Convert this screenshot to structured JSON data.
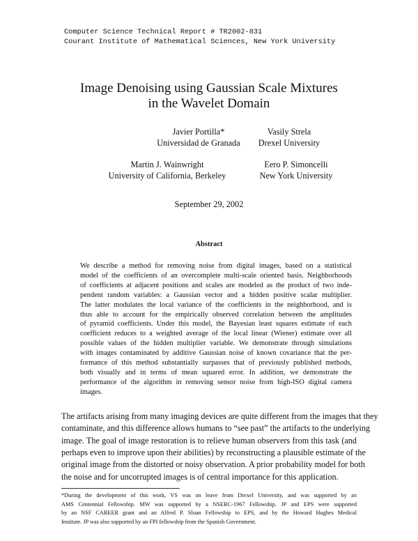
{
  "header": {
    "line1": "Computer Science Technical Report # TR2002-831",
    "line2": "Courant Institute of Mathematical Sciences, New York University"
  },
  "title": {
    "line1": "Image Denoising using Gaussian Scale Mixtures",
    "line2": "in the Wavelet Domain"
  },
  "authors": [
    {
      "name": "Javier Portilla*",
      "affiliation": "Universidad de Granada"
    },
    {
      "name": "Vasily Strela",
      "affiliation": "Drexel University"
    },
    {
      "name": "Martin J. Wainwright",
      "affiliation": "University of California, Berkeley"
    },
    {
      "name": "Eero P. Simoncelli",
      "affiliation": "New York University"
    }
  ],
  "date": "September 29, 2002",
  "abstract": {
    "heading": "Abstract",
    "lines": [
      "We describe a method for removing noise from digital images, based on a statistical",
      "model of the coefficients of an overcomplete multi-scale oriented basis. Neighborhoods",
      "of coefficients at adjacent positions and scales are modeled as the product of two inde-",
      "pendent random variables: a Gaussian vector and a hidden positive scalar multiplier.",
      "The latter modulates the local variance of the coefficients in the neighborhood, and is",
      "thus able to account for the empirically observed correlation between the amplitudes",
      "of pyramid coefficients. Under this model, the Bayesian least squares estimate of each",
      "coefficient reduces to a weighted average of the local linear (Wiener) estimate over all",
      "possible values of the hidden multiplier variable. We demonstrate through simulations",
      "with images contaminated by additive Gaussian noise of known covariance that the per-",
      "formance of this method substantially surpasses that of previously published methods,",
      "both visually and in terms of mean squared error.   In addition, we demonstrate the",
      "performance of the algorithm in removing sensor noise from high-ISO digital camera",
      "images."
    ]
  },
  "body": {
    "lines": [
      "The artifacts arising from many imaging devices are quite different from the images that they",
      "contaminate, and this difference allows humans to “see past” the artifacts to the underlying",
      "image. The goal of image restoration is to relieve human observers from this task (and",
      "perhaps even to improve upon their abilities) by reconstructing a plausible estimate of the",
      "original image from the distorted or noisy observation. A prior probability model for both",
      "the noise and for uncorrupted  images is of central importance for this application."
    ]
  },
  "footnote": {
    "lines": [
      "*During the development of this work, VS was on leave from Drexel University, and was supported by an",
      "AMS Centennial Fellowship. MW was supported by a NSERC-1967 Fellowship. JP and EPS were supported",
      "by an NSF CAREER grant and an Alfred P. Sloan Fellowship to EPS, and by the Howard Hughes Medical",
      "Institute. JP was also supported by an FPI fellowship from the Spanish Government."
    ]
  }
}
